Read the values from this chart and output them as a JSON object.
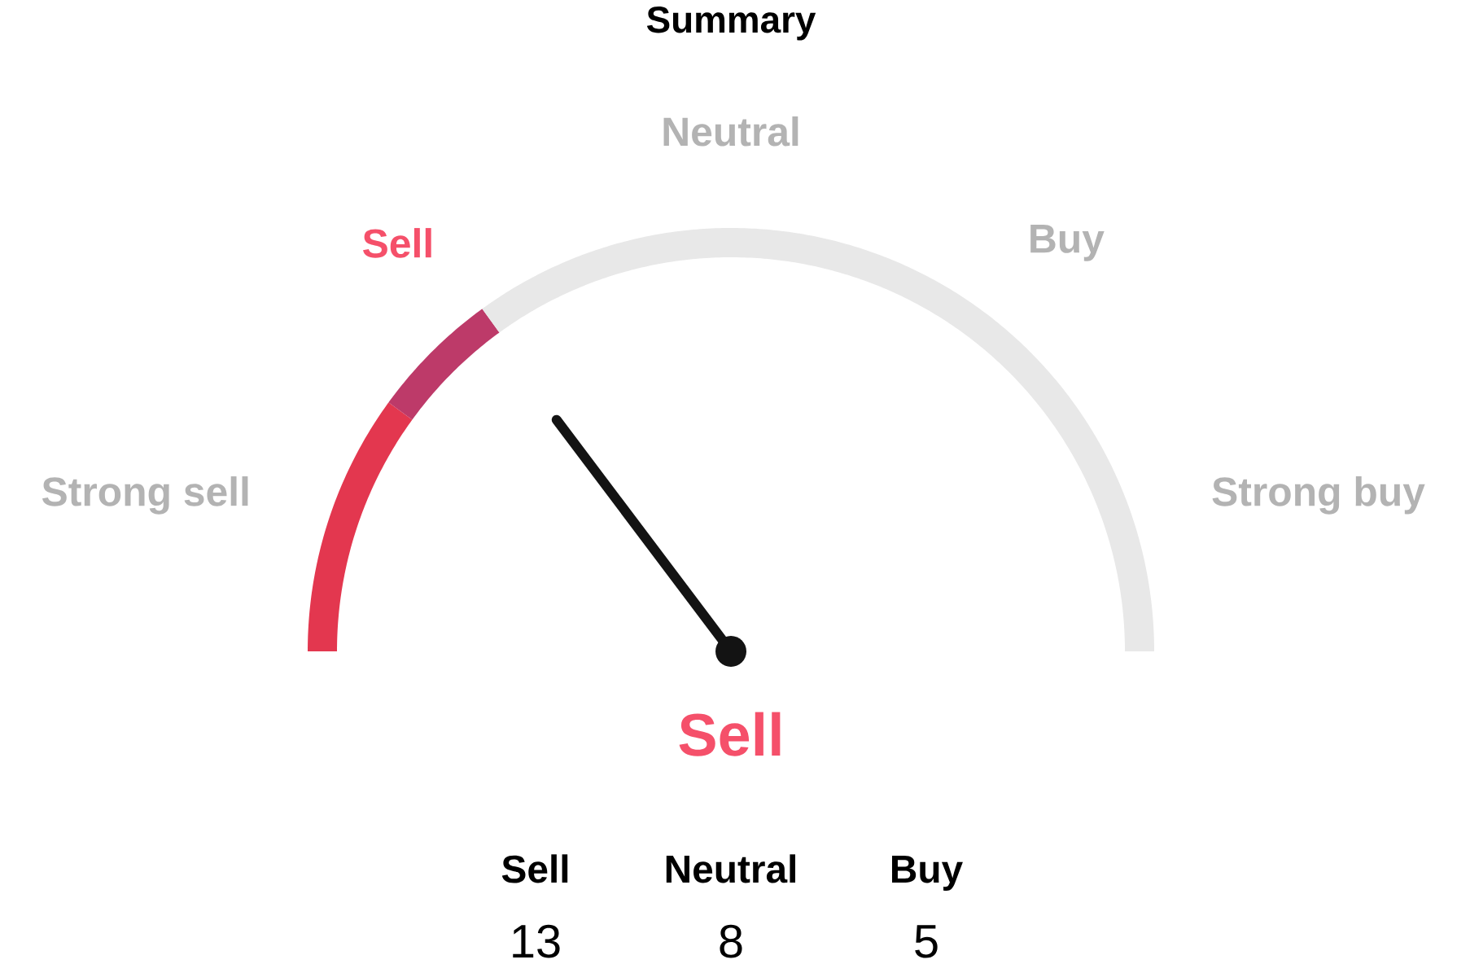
{
  "chart_data": [
    {
      "type": "donut",
      "title": "Summary",
      "categories": [
        "Strong sell",
        "Sell",
        null
      ],
      "values": [
        20,
        10,
        70
      ],
      "colors": [
        "#e3374f",
        "#bd3a69",
        "#e8e8e8"
      ],
      "needle": "Sell",
      "annotations": [
        "Neutral",
        "Buy",
        "Strong buy"
      ]
    },
    {
      "type": "other",
      "categories": [
        "Sell",
        "Neutral",
        "Buy"
      ],
      "values": [
        13,
        8,
        5
      ],
      "data_labels": true
    }
  ]
}
